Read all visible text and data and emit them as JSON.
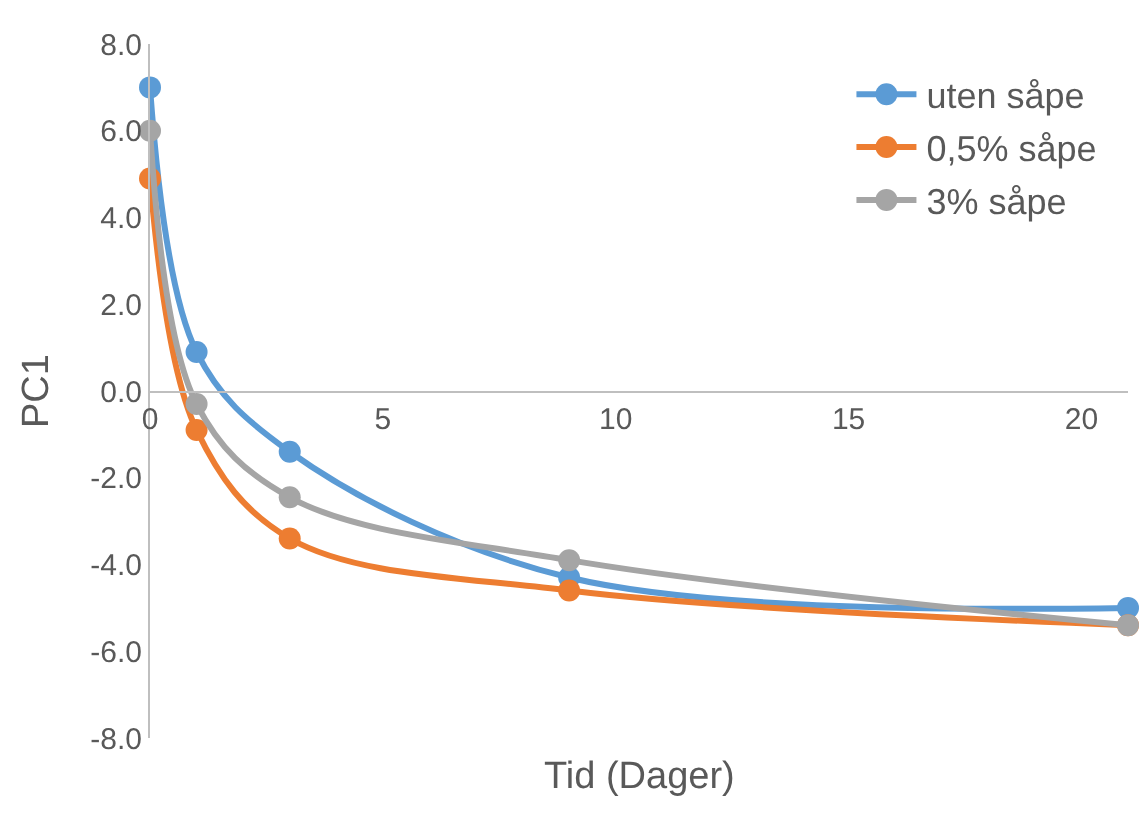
{
  "chart_data": {
    "type": "line",
    "xlabel": "Tid (Dager)",
    "ylabel": "PC1",
    "x": [
      0,
      1,
      3,
      9,
      21
    ],
    "series": [
      {
        "name": "uten såpe",
        "color": "#5b9bd5",
        "values": [
          7.0,
          0.9,
          -1.4,
          -4.3,
          -5.0
        ]
      },
      {
        "name": "0,5% såpe",
        "color": "#ed7d31",
        "values": [
          4.9,
          -0.9,
          -3.4,
          -4.6,
          -5.4
        ]
      },
      {
        "name": "3% såpe",
        "color": "#a5a5a5",
        "values": [
          6.0,
          -0.3,
          -2.45,
          -3.9,
          -5.4
        ]
      }
    ],
    "xlim": [
      0,
      21
    ],
    "xticks": [
      0,
      5,
      10,
      15,
      20
    ],
    "ylim": [
      -8,
      8
    ],
    "yticks": [
      {
        "value": -8,
        "label": "-8.0"
      },
      {
        "value": -6,
        "label": "-6.0"
      },
      {
        "value": -4,
        "label": "-4.0"
      },
      {
        "value": -2,
        "label": "-2.0"
      },
      {
        "value": 0,
        "label": "0.0"
      },
      {
        "value": 2,
        "label": "2.0"
      },
      {
        "value": 4,
        "label": "4.0"
      },
      {
        "value": 6,
        "label": "6.0"
      },
      {
        "value": 8,
        "label": "8.0"
      }
    ],
    "grid": false,
    "legend": "top right",
    "marker": "circle",
    "line_style": "solid"
  }
}
